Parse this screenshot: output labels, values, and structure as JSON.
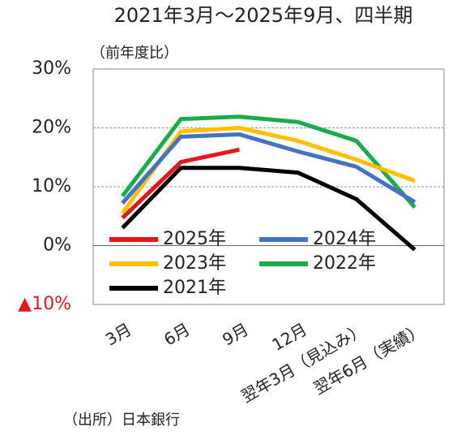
{
  "chart_data": {
    "type": "line",
    "title": "2021年3月～2025年9月、四半期",
    "subtitle": "（前年度比）",
    "source": "（出所）日本銀行",
    "categories": [
      "3月",
      "6月",
      "9月",
      "12月",
      "翌年3月（見込み）",
      "翌年6月（実績）"
    ],
    "series": [
      {
        "name": "2025年",
        "color": "#e8161b",
        "values": [
          4.7,
          14.2,
          16.3,
          null,
          null,
          null
        ]
      },
      {
        "name": "2024年",
        "color": "#4472c4",
        "values": [
          7.2,
          18.5,
          18.9,
          16.0,
          13.4,
          7.4
        ]
      },
      {
        "name": "2023年",
        "color": "#ffc000",
        "values": [
          5.5,
          19.4,
          20.0,
          17.8,
          14.6,
          11.0
        ]
      },
      {
        "name": "2022年",
        "color": "#1aab4b",
        "values": [
          8.4,
          21.5,
          21.9,
          21.0,
          17.8,
          6.5
        ]
      },
      {
        "name": "2021年",
        "color": "#000000",
        "values": [
          3.0,
          13.2,
          13.2,
          12.4,
          7.9,
          -0.7
        ]
      }
    ],
    "ylim": [
      -10,
      30
    ],
    "yticks": [
      {
        "value": -10,
        "label": "▲10%",
        "color": "#e8161b"
      },
      {
        "value": 0,
        "label": "0%"
      },
      {
        "value": 10,
        "label": "10%"
      },
      {
        "value": 20,
        "label": "20%"
      },
      {
        "value": 30,
        "label": "30%"
      }
    ],
    "grid": true,
    "legend_position": "lower left"
  }
}
